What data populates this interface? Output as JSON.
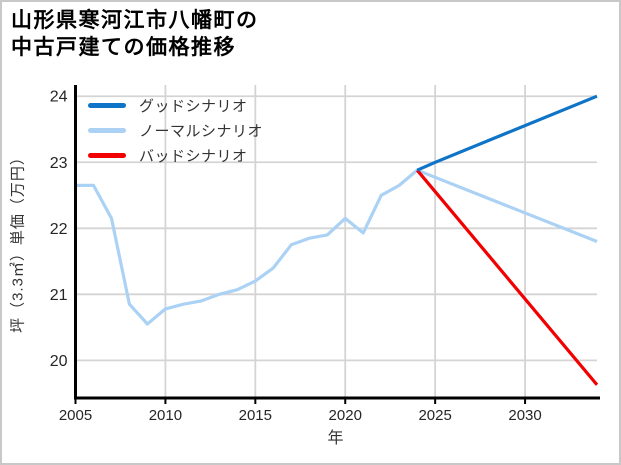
{
  "frame": {
    "border_color": "#c8c8c8",
    "background": "#ffffff"
  },
  "chart_data": {
    "type": "line",
    "title_lines": [
      "山形県寒河江市八幡町の",
      "中古戸建ての価格推移"
    ],
    "title": "山形県寒河江市八幡町の中古戸建ての価格推移",
    "xlabel": "年",
    "ylabel": "坪（3.3㎡）単価（万円）",
    "xlim": [
      2005,
      2034
    ],
    "ylim": [
      19.43,
      24.17
    ],
    "xticks": [
      2005,
      2010,
      2015,
      2020,
      2025,
      2030
    ],
    "yticks": [
      20,
      21,
      22,
      23,
      24
    ],
    "grid": true,
    "grid_color": "#d4d4d4",
    "axis_color": "#000000",
    "tick_label_color": "#262626",
    "legend": {
      "position": "upper-left",
      "frame": false
    },
    "series": [
      {
        "name": "グッドシナリオ",
        "color": "#0e74c8",
        "points": [
          [
            2024,
            22.88
          ],
          [
            2025,
            23.0
          ],
          [
            2034,
            24.0
          ]
        ]
      },
      {
        "name": "ノーマルシナリオ",
        "color": "#abd2f5",
        "points": [
          [
            2005,
            22.65
          ],
          [
            2006,
            22.65
          ],
          [
            2007,
            22.15
          ],
          [
            2008,
            20.85
          ],
          [
            2009,
            20.55
          ],
          [
            2010,
            20.78
          ],
          [
            2011,
            20.85
          ],
          [
            2012,
            20.9
          ],
          [
            2013,
            21.0
          ],
          [
            2014,
            21.07
          ],
          [
            2015,
            21.2
          ],
          [
            2016,
            21.4
          ],
          [
            2017,
            21.75
          ],
          [
            2018,
            21.85
          ],
          [
            2019,
            21.9
          ],
          [
            2020,
            22.15
          ],
          [
            2021,
            21.93
          ],
          [
            2022,
            22.5
          ],
          [
            2023,
            22.65
          ],
          [
            2024,
            22.88
          ],
          [
            2034,
            21.8
          ]
        ]
      },
      {
        "name": "バッドシナリオ",
        "color": "#f20000",
        "points": [
          [
            2024,
            22.88
          ],
          [
            2034,
            19.63
          ]
        ]
      }
    ],
    "draw_order": [
      1,
      2,
      0
    ]
  }
}
